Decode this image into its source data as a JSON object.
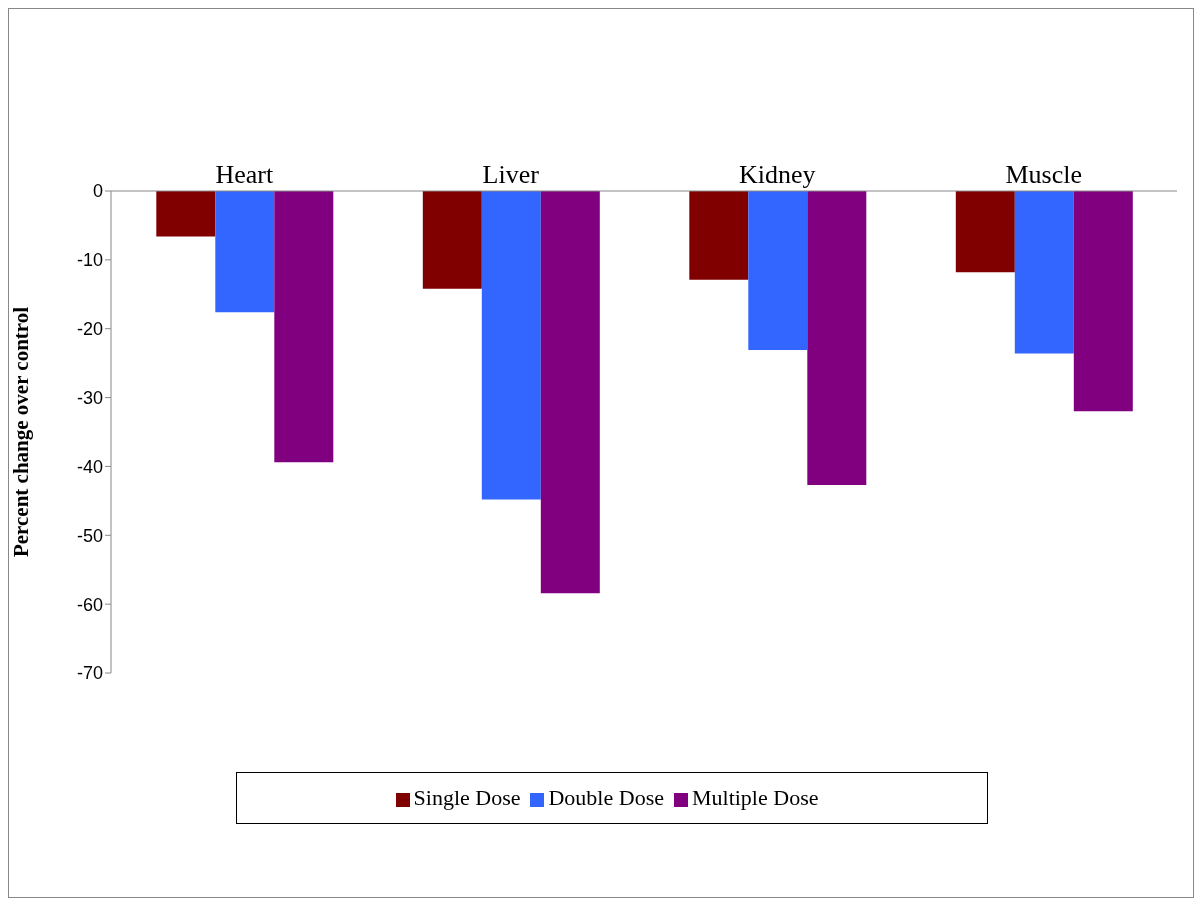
{
  "chart_data": {
    "type": "bar",
    "categories": [
      "Heart",
      "Liver",
      "Kidney",
      "Muscle"
    ],
    "series": [
      {
        "name": "Single Dose",
        "color": "#800000",
        "values": [
          -6.6,
          -14.2,
          -12.9,
          -11.8
        ]
      },
      {
        "name": "Double Dose",
        "color": "#3366ff",
        "values": [
          -17.6,
          -44.8,
          -23.1,
          -23.6
        ]
      },
      {
        "name": "Multiple Dose",
        "color": "#800080",
        "values": [
          -39.4,
          -58.4,
          -42.7,
          -32.0
        ]
      }
    ],
    "ylabel": "Percent change over control",
    "ylim": [
      -70,
      0
    ],
    "yticks": [
      0,
      -10,
      -20,
      -30,
      -40,
      -50,
      -60,
      -70
    ],
    "grid": false,
    "legend": "bottom"
  }
}
